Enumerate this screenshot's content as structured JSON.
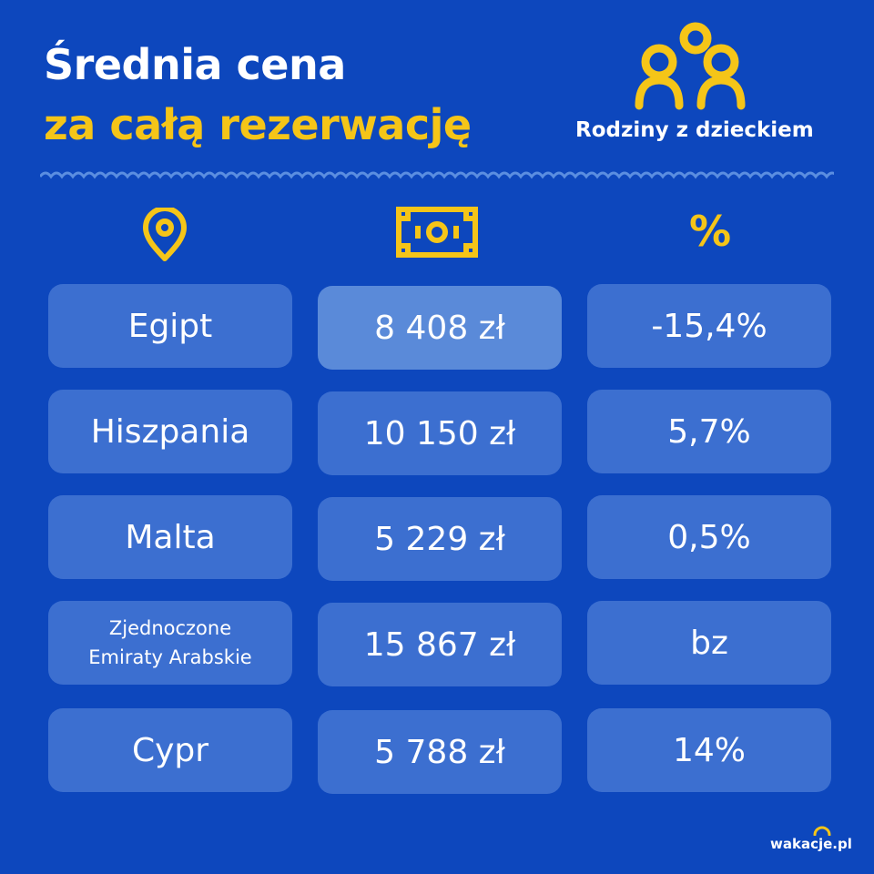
{
  "header": {
    "title_line1": "Średnia cena",
    "title_line2": "za całą rezerwację",
    "segment_label": "Rodziny z dzieckiem",
    "segment_icon": "family-icon"
  },
  "columns": {
    "destination_icon": "location-pin-icon",
    "price_icon": "banknote-icon",
    "change_label": "%"
  },
  "rows": [
    {
      "destination": "Egipt",
      "price": "8 408 zł",
      "change": "-15,4%"
    },
    {
      "destination": "Hiszpania",
      "price": "10 150 zł",
      "change": "5,7%"
    },
    {
      "destination": "Malta",
      "price": "5 229 zł",
      "change": "0,5%"
    },
    {
      "destination_line1": "Zjednoczone",
      "destination_line2": "Emiraty Arabskie",
      "price": "15 867 zł",
      "change": "bz"
    },
    {
      "destination": "Cypr",
      "price": "5 788 zł",
      "change": "14%"
    }
  ],
  "footer": {
    "logo_text": "wakacje.pl"
  },
  "colors": {
    "background": "#0d47bd",
    "accent_yellow": "#f5c518",
    "cell": "#3c6fd0",
    "cell_highlight": "#5a8ad9",
    "wave": "#5b8ee0"
  }
}
